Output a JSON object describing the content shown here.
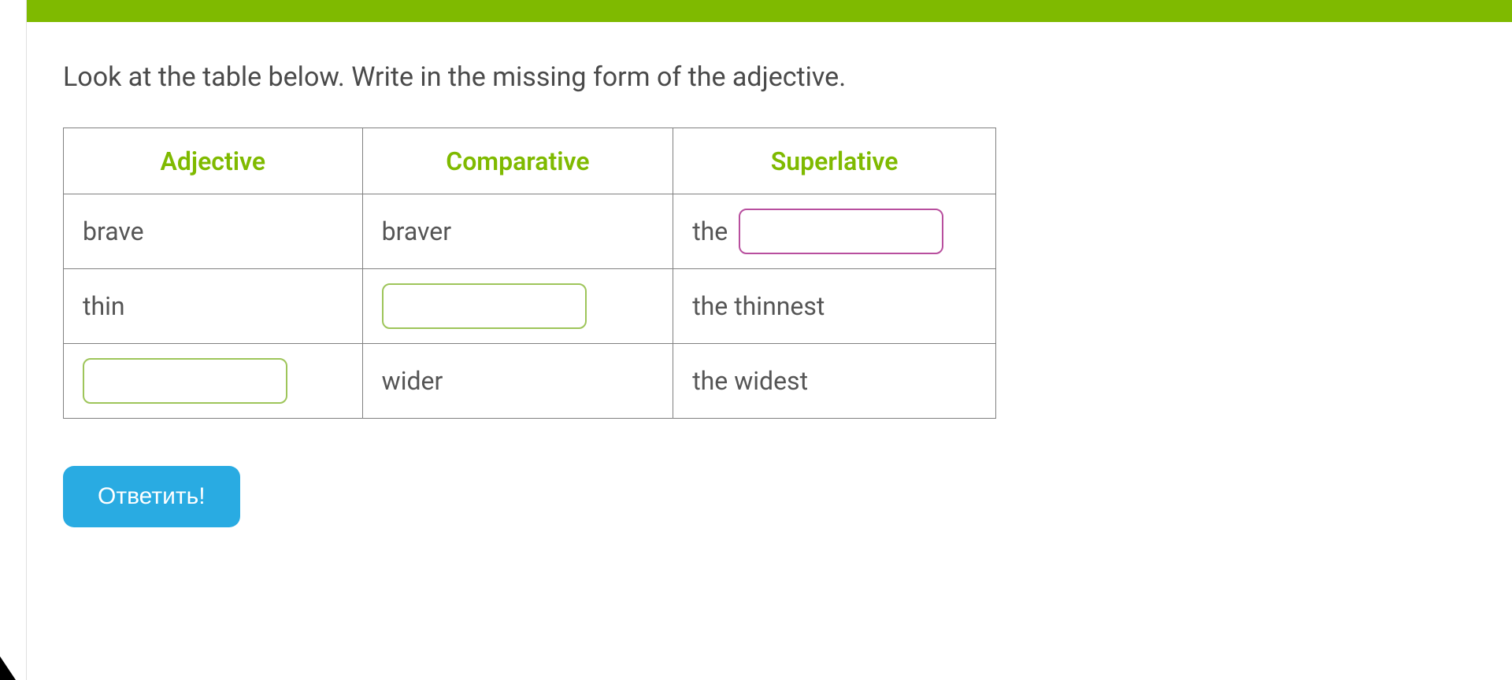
{
  "colors": {
    "accent_green": "#7fba00",
    "button_blue": "#29abe2",
    "text_gray": "#4a4a4a",
    "cell_text": "#555555",
    "border_gray": "#808080",
    "input_green_border": "#9ec55a",
    "input_purple_border": "#b84f9e",
    "background": "#ffffff"
  },
  "instruction": "Look at the table below. Write in the missing form of the adjective.",
  "table": {
    "headers": [
      "Adjective",
      "Comparative",
      "Superlative"
    ],
    "rows": [
      {
        "adjective": {
          "type": "text",
          "value": "brave"
        },
        "comparative": {
          "type": "text",
          "value": "braver"
        },
        "superlative": {
          "type": "prefix_input",
          "prefix": "the",
          "value": "",
          "style": "purple"
        }
      },
      {
        "adjective": {
          "type": "text",
          "value": "thin"
        },
        "comparative": {
          "type": "input",
          "value": "",
          "style": "green"
        },
        "superlative": {
          "type": "text",
          "value": "the thinnest"
        }
      },
      {
        "adjective": {
          "type": "input",
          "value": "",
          "style": "green"
        },
        "comparative": {
          "type": "text",
          "value": "wider"
        },
        "superlative": {
          "type": "text",
          "value": "the widest"
        }
      }
    ]
  },
  "button": {
    "answer_label": "Ответить!"
  }
}
